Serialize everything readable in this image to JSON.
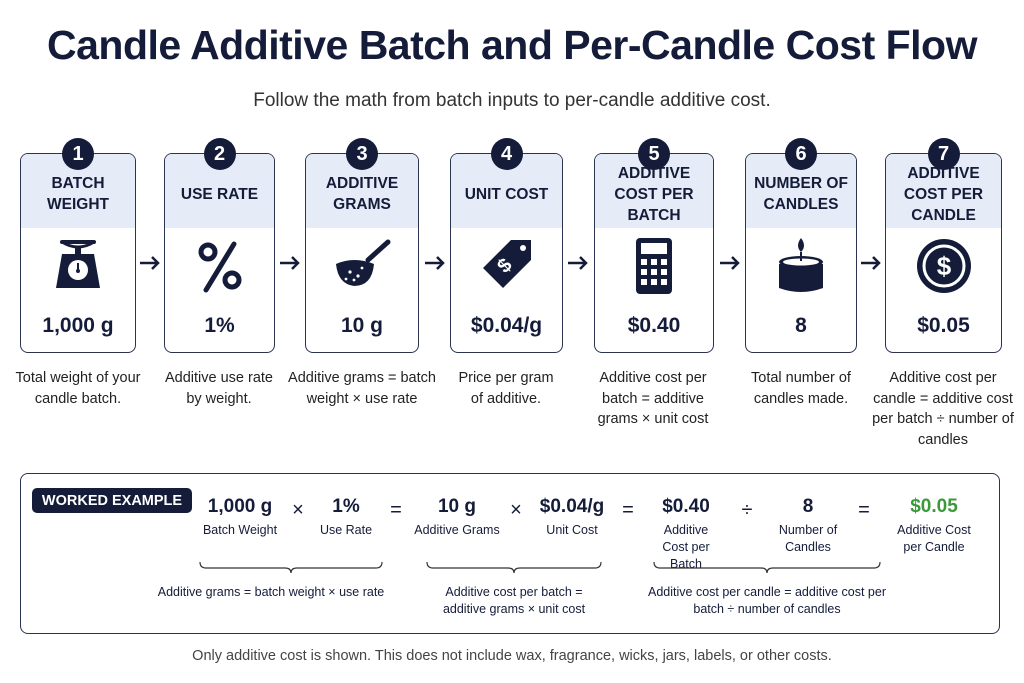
{
  "title": "Candle Additive Batch and Per-Candle Cost Flow",
  "subtitle": "Follow the math from batch inputs to per-candle additive cost.",
  "colors": {
    "navy": "#141c3a",
    "header_band": "#e5ecf7",
    "result_green": "#3a9a3a"
  },
  "steps": [
    {
      "number": "1",
      "title": "BATCH WEIGHT",
      "icon": "scale-icon",
      "value": "1,000 g",
      "description": "Total weight of your candle batch."
    },
    {
      "number": "2",
      "title": "USE RATE",
      "icon": "percent-icon",
      "value": "1%",
      "description": "Additive use rate by weight."
    },
    {
      "number": "3",
      "title": "ADDITIVE GRAMS",
      "icon": "scoop-icon",
      "value": "10 g",
      "description": "Additive grams = batch weight × use rate"
    },
    {
      "number": "4",
      "title": "UNIT COST",
      "icon": "price-tag-icon",
      "value": "$0.04/g",
      "description": "Price per gram of additive."
    },
    {
      "number": "5",
      "title": "ADDITIVE COST PER BATCH",
      "icon": "calculator-icon",
      "value": "$0.40",
      "description": "Additive cost per batch = additive grams × unit cost"
    },
    {
      "number": "6",
      "title": "NUMBER OF CANDLES",
      "icon": "candle-icon",
      "value": "8",
      "description": "Total number of candles made."
    },
    {
      "number": "7",
      "title": "ADDITIVE COST PER CANDLE",
      "icon": "dollar-coin-icon",
      "value": "$0.05",
      "description": "Additive cost per candle = additive cost per batch ÷ number of candles"
    }
  ],
  "example": {
    "badge": "WORKED EXAMPLE",
    "terms": [
      {
        "value": "1,000 g",
        "label": "Batch Weight"
      },
      {
        "value": "1%",
        "label": "Use Rate"
      },
      {
        "value": "10 g",
        "label": "Additive Grams"
      },
      {
        "value": "$0.04/g",
        "label": "Unit Cost"
      },
      {
        "value": "$0.40",
        "label": "Additive Cost per Batch"
      },
      {
        "value": "8",
        "label": "Number of Candles"
      },
      {
        "value": "$0.05",
        "label": "Additive Cost per Candle"
      }
    ],
    "operators": [
      "×",
      "=",
      "×",
      "=",
      "÷",
      "="
    ],
    "notes": [
      "Additive grams = batch weight × use rate",
      "Additive cost per batch = additive grams × unit cost",
      "Additive cost per candle = additive cost per batch ÷ number of candles"
    ]
  },
  "footer": "Only additive cost is shown. This does not include wax, fragrance, wicks, jars, labels, or other costs."
}
